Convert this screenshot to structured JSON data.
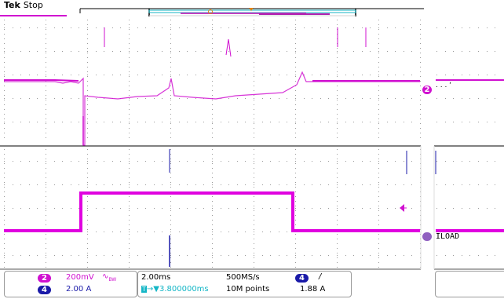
{
  "header": {
    "brand": "Tek",
    "acquisition_state": "Stop"
  },
  "channels": {
    "ch2": {
      "number": "2",
      "scale": "200mV",
      "coupling_icon": "bandwidth-limit-icon",
      "bw_mark": "∿",
      "bw_sub": "BW",
      "color": "#d010d0"
    },
    "ch4": {
      "number": "4",
      "scale": "2.00 A",
      "color": "#1a1aa8",
      "marker_label": "ILOAD"
    }
  },
  "horizontal": {
    "time_per_div": "2.00ms",
    "trigger_position": "▼3.800000ms",
    "trigger_marker": "T",
    "sample_rate": "500MS/s",
    "record_length": "10M points"
  },
  "trigger": {
    "source": "4",
    "slope_icon": "rising-edge-icon",
    "slope": "/",
    "level": "1.88 A"
  },
  "colors": {
    "ch2": "#d010d0",
    "ch4": "#e000e0",
    "ch4_badge": "#1a1aa8",
    "grid_dot": "#9a9a9a",
    "cursor_teal": "#14b6c6",
    "record_bar_orange": "#e08010"
  }
}
